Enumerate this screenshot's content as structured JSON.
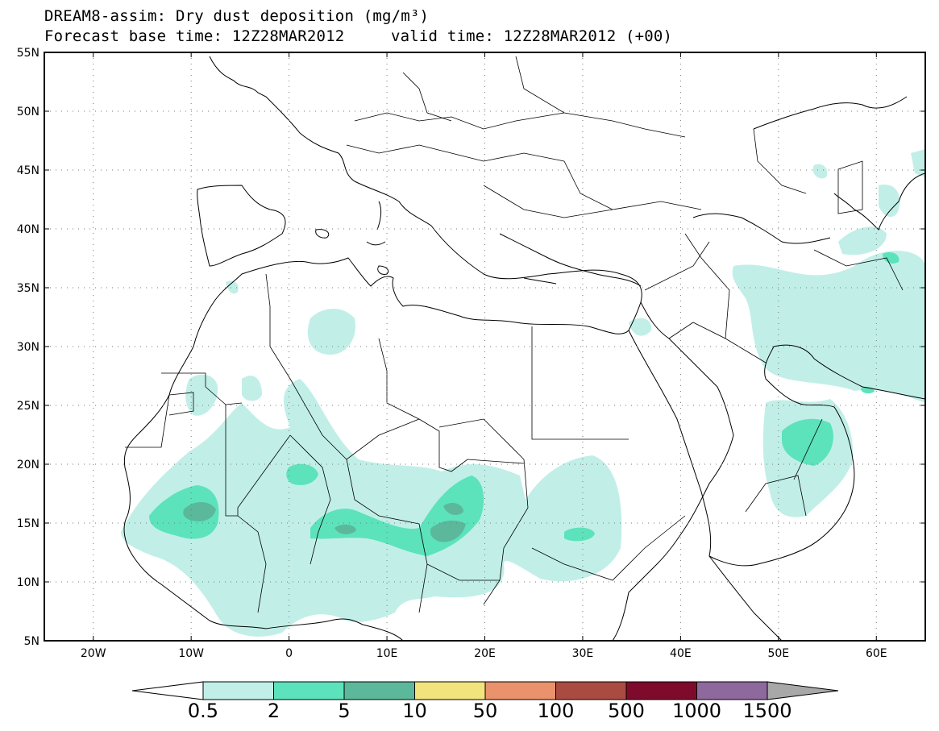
{
  "header": {
    "title_line1": "DREAM8-assim: Dry dust deposition (mg/m³)",
    "title_line2_left": "Forecast base time: 12Z28MAR2012",
    "title_line2_right": "valid time: 12Z28MAR2012 (+00)"
  },
  "map": {
    "lon_range": [
      -25,
      65
    ],
    "lat_range": [
      5,
      55
    ],
    "lon_ticks": [
      {
        "lon": -20,
        "label": "20W"
      },
      {
        "lon": -10,
        "label": "10W"
      },
      {
        "lon": 0,
        "label": "0"
      },
      {
        "lon": 10,
        "label": "10E"
      },
      {
        "lon": 20,
        "label": "20E"
      },
      {
        "lon": 30,
        "label": "30E"
      },
      {
        "lon": 40,
        "label": "40E"
      },
      {
        "lon": 50,
        "label": "50E"
      },
      {
        "lon": 60,
        "label": "60E"
      }
    ],
    "lat_ticks": [
      {
        "lat": 55,
        "label": "55N"
      },
      {
        "lat": 50,
        "label": "50N"
      },
      {
        "lat": 45,
        "label": "45N"
      },
      {
        "lat": 40,
        "label": "40N"
      },
      {
        "lat": 35,
        "label": "35N"
      },
      {
        "lat": 30,
        "label": "30N"
      },
      {
        "lat": 25,
        "label": "25N"
      },
      {
        "lat": 20,
        "label": "20N"
      },
      {
        "lat": 15,
        "label": "15N"
      },
      {
        "lat": 10,
        "label": "10N"
      },
      {
        "lat": 5,
        "label": "5N"
      }
    ],
    "grid": "dotted"
  },
  "colorbar": {
    "colors": [
      "#c1efe8",
      "#5ce3bc",
      "#5cb89a",
      "#f3e37c",
      "#e9926c",
      "#aa4b42",
      "#7f0b2c",
      "#8e699d",
      "#a8a8a8"
    ],
    "labels": [
      "0.5",
      "2",
      "5",
      "10",
      "50",
      "100",
      "500",
      "1000",
      "1500"
    ]
  },
  "colors": {
    "land_outline": "#000000",
    "level1": "#c1efe8",
    "level2": "#5ce3bc",
    "level3": "#5cb89a"
  }
}
